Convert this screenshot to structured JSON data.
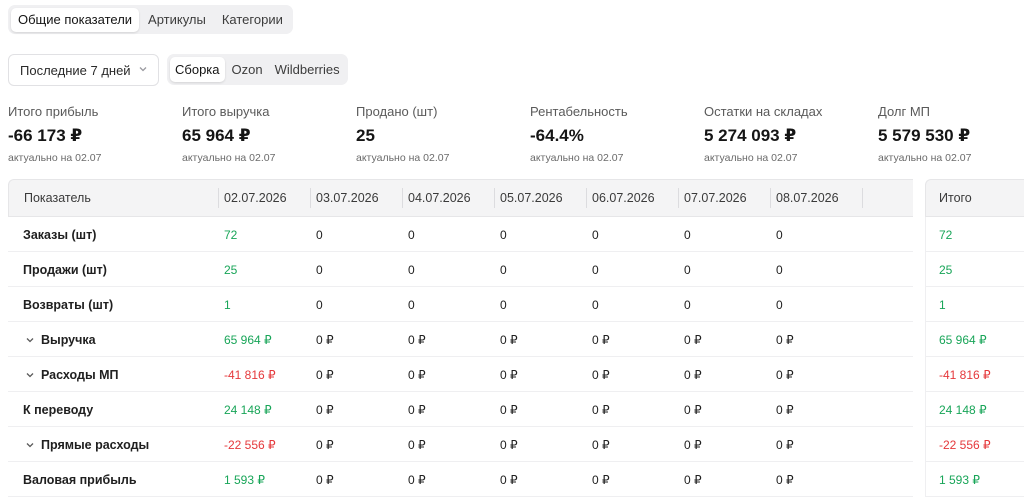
{
  "tabs": {
    "items": [
      "Общие показатели",
      "Артикулы",
      "Категории"
    ],
    "active": 0
  },
  "period": {
    "value": "Последние 7 дней"
  },
  "sources": {
    "items": [
      "Сборка",
      "Ozon",
      "Wildberries"
    ],
    "active": 0
  },
  "kpis": [
    {
      "label": "Итого прибыль",
      "value": "-66 173 ₽",
      "note": "актуально на 02.07"
    },
    {
      "label": "Итого выручка",
      "value": "65 964 ₽",
      "note": "актуально на 02.07"
    },
    {
      "label": "Продано (шт)",
      "value": "25",
      "note": "актуально на 02.07"
    },
    {
      "label": "Рентабельность",
      "value": "-64.4%",
      "note": "актуально на 02.07"
    },
    {
      "label": "Остатки на складах",
      "value": "5 274 093 ₽",
      "note": "актуально на 02.07"
    },
    {
      "label": "Долг МП",
      "value": "5 579 530 ₽",
      "note": "актуально на 02.07"
    }
  ],
  "table": {
    "metric_header": "Показатель",
    "dates": [
      "02.07.2026",
      "03.07.2026",
      "04.07.2026",
      "05.07.2026",
      "06.07.2026",
      "07.07.2026",
      "08.07.2026"
    ],
    "total_header": "Итого",
    "rows": [
      {
        "label": "Заказы (шт)",
        "expandable": false,
        "values": [
          "72",
          "0",
          "0",
          "0",
          "0",
          "0",
          "0"
        ],
        "total": "72",
        "tone": "pos"
      },
      {
        "label": "Продажи (шт)",
        "expandable": false,
        "values": [
          "25",
          "0",
          "0",
          "0",
          "0",
          "0",
          "0"
        ],
        "total": "25",
        "tone": "pos"
      },
      {
        "label": "Возвраты (шт)",
        "expandable": false,
        "values": [
          "1",
          "0",
          "0",
          "0",
          "0",
          "0",
          "0"
        ],
        "total": "1",
        "tone": "pos"
      },
      {
        "label": "Выручка",
        "expandable": true,
        "values": [
          "65 964 ₽",
          "0 ₽",
          "0 ₽",
          "0 ₽",
          "0 ₽",
          "0 ₽",
          "0 ₽"
        ],
        "total": "65 964 ₽",
        "tone": "pos"
      },
      {
        "label": "Расходы МП",
        "expandable": true,
        "values": [
          "-41 816 ₽",
          "0 ₽",
          "0 ₽",
          "0 ₽",
          "0 ₽",
          "0 ₽",
          "0 ₽"
        ],
        "total": "-41 816 ₽",
        "tone": "neg"
      },
      {
        "label": "К переводу",
        "expandable": false,
        "values": [
          "24 148 ₽",
          "0 ₽",
          "0 ₽",
          "0 ₽",
          "0 ₽",
          "0 ₽",
          "0 ₽"
        ],
        "total": "24 148 ₽",
        "tone": "pos"
      },
      {
        "label": "Прямые расходы",
        "expandable": true,
        "values": [
          "-22 556 ₽",
          "0 ₽",
          "0 ₽",
          "0 ₽",
          "0 ₽",
          "0 ₽",
          "0 ₽"
        ],
        "total": "-22 556 ₽",
        "tone": "neg"
      },
      {
        "label": "Валовая прибыль",
        "expandable": false,
        "values": [
          "1 593 ₽",
          "0 ₽",
          "0 ₽",
          "0 ₽",
          "0 ₽",
          "0 ₽",
          "0 ₽"
        ],
        "total": "1 593 ₽",
        "tone": "pos"
      }
    ]
  },
  "colors": {
    "positive": "#18a558",
    "negative": "#e5383b",
    "header_bg": "#f4f4f5"
  },
  "icons": {
    "period_chevron": "chevron-down-icon",
    "row_expand": "chevron-down-icon"
  }
}
